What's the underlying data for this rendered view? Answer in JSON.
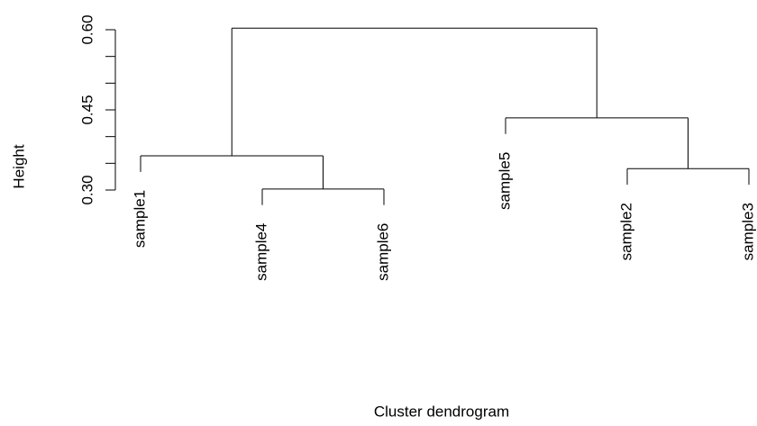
{
  "chart_data": {
    "type": "dendrogram",
    "title": "Cluster dendrogram",
    "ylabel": "Height",
    "labels": [
      "sample1",
      "sample4",
      "sample6",
      "sample5",
      "sample2",
      "sample3"
    ],
    "merges": [
      {
        "children": [
          -2,
          -3
        ],
        "height": 0.302
      },
      {
        "children": [
          -5,
          -6
        ],
        "height": 0.34
      },
      {
        "children": [
          -1,
          1
        ],
        "height": 0.364
      },
      {
        "children": [
          -4,
          2
        ],
        "height": 0.435
      },
      {
        "children": [
          3,
          4
        ],
        "height": 0.603
      }
    ],
    "hang": 0.03,
    "ylim": [
      0.3,
      0.6
    ],
    "yticks": [
      {
        "value": 0.3,
        "label": "0.30"
      },
      {
        "value": 0.45,
        "label": "0.45"
      },
      {
        "value": 0.6,
        "label": "0.60"
      }
    ],
    "minor_yticks": [
      0.35,
      0.4,
      0.5,
      0.55
    ],
    "color": "#000000"
  }
}
